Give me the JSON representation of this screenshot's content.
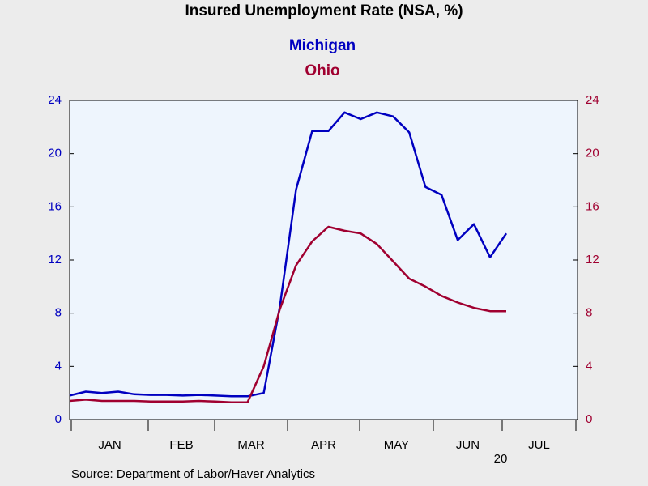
{
  "chart_data": {
    "type": "line",
    "title": "Insured Unemployment Rate (NSA, %)",
    "categories": [
      null,
      null,
      null,
      null,
      null,
      null,
      null,
      null,
      null,
      null,
      null,
      null,
      null,
      null,
      null,
      null,
      null,
      null,
      null,
      null,
      null,
      null,
      null,
      null,
      null,
      null,
      null,
      null
    ],
    "months": [
      "JAN",
      "FEB",
      "MAR",
      "APR",
      "MAY",
      "JUN",
      "JUL"
    ],
    "year_label": "20",
    "series": [
      {
        "name": "Michigan",
        "color": "#0000c0",
        "values": [
          1.8,
          2.1,
          2.0,
          2.1,
          1.9,
          1.85,
          1.85,
          1.8,
          1.85,
          1.8,
          1.75,
          1.75,
          2.0,
          8.5,
          17.3,
          21.7,
          21.7,
          23.1,
          22.6,
          23.1,
          22.8,
          21.6,
          17.5,
          16.9,
          13.5,
          14.7,
          12.2,
          14.0
        ]
      },
      {
        "name": "Ohio",
        "color": "#a00030",
        "axis": "y2",
        "values": [
          1.4,
          1.5,
          1.4,
          1.4,
          1.4,
          1.35,
          1.35,
          1.35,
          1.4,
          1.35,
          1.3,
          1.3,
          4.0,
          8.3,
          11.6,
          13.4,
          14.5,
          14.2,
          14.0,
          13.2,
          11.9,
          10.6,
          10.0,
          9.3,
          8.8,
          8.4,
          8.15,
          8.15
        ]
      }
    ],
    "ylim": [
      0,
      24
    ],
    "yticks": [
      0,
      4,
      8,
      12,
      16,
      20,
      24
    ],
    "y2lim": [
      0,
      24
    ],
    "y2ticks": [
      0,
      4,
      8,
      12,
      16,
      20,
      24
    ],
    "source": "Source:  Department of Labor/Haver Analytics"
  }
}
